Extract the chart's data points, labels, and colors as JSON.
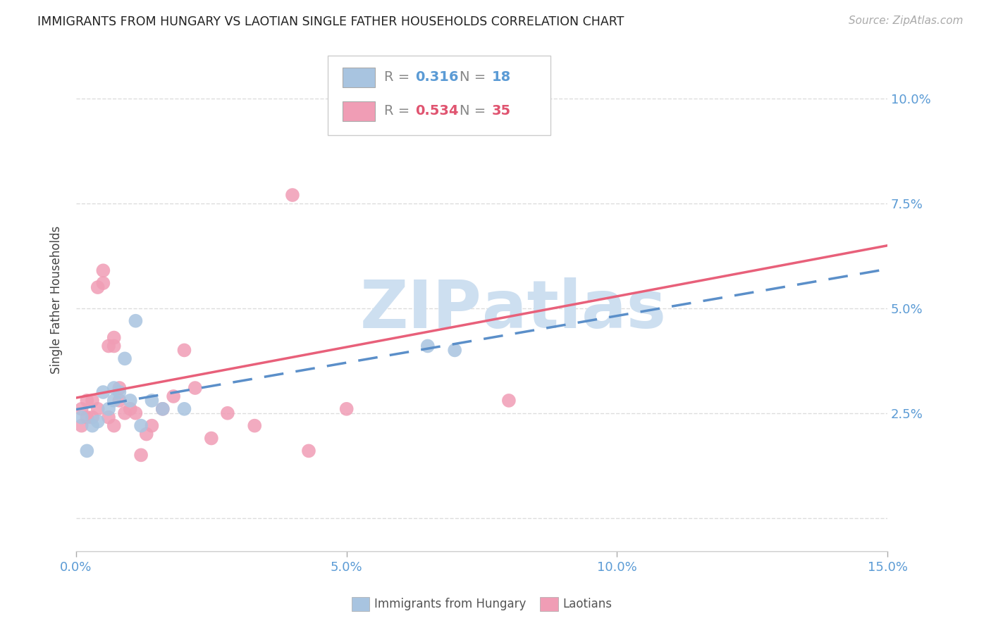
{
  "title": "IMMIGRANTS FROM HUNGARY VS LAOTIAN SINGLE FATHER HOUSEHOLDS CORRELATION CHART",
  "source": "Source: ZipAtlas.com",
  "ylabel": "Single Father Households",
  "xlim": [
    0.0,
    0.15
  ],
  "ylim": [
    -0.008,
    0.112
  ],
  "yticks": [
    0.0,
    0.025,
    0.05,
    0.075,
    0.1
  ],
  "xticks": [
    0.0,
    0.05,
    0.1,
    0.15
  ],
  "xtick_labels": [
    "0.0%",
    "5.0%",
    "10.0%",
    "15.0%"
  ],
  "ytick_labels_right": [
    "",
    "2.5%",
    "5.0%",
    "7.5%",
    "10.0%"
  ],
  "hungary_R": 0.316,
  "hungary_N": 18,
  "laotian_R": 0.534,
  "laotian_N": 35,
  "hungary_color": "#a8c4e0",
  "laotian_color": "#f09db5",
  "hungary_line_color": "#5b8fc9",
  "laotian_line_color": "#e8607a",
  "hungary_x": [
    0.001,
    0.002,
    0.003,
    0.004,
    0.005,
    0.006,
    0.007,
    0.007,
    0.008,
    0.009,
    0.01,
    0.011,
    0.012,
    0.014,
    0.016,
    0.02,
    0.065,
    0.07
  ],
  "hungary_y": [
    0.024,
    0.016,
    0.022,
    0.023,
    0.03,
    0.026,
    0.028,
    0.031,
    0.03,
    0.038,
    0.028,
    0.047,
    0.022,
    0.028,
    0.026,
    0.026,
    0.041,
    0.04
  ],
  "laotian_x": [
    0.001,
    0.001,
    0.002,
    0.002,
    0.003,
    0.003,
    0.004,
    0.004,
    0.005,
    0.005,
    0.006,
    0.006,
    0.007,
    0.007,
    0.007,
    0.008,
    0.008,
    0.009,
    0.01,
    0.011,
    0.012,
    0.013,
    0.014,
    0.016,
    0.018,
    0.02,
    0.022,
    0.025,
    0.028,
    0.033,
    0.04,
    0.043,
    0.05,
    0.065,
    0.08
  ],
  "laotian_y": [
    0.022,
    0.026,
    0.024,
    0.028,
    0.024,
    0.028,
    0.026,
    0.055,
    0.059,
    0.056,
    0.024,
    0.041,
    0.022,
    0.041,
    0.043,
    0.028,
    0.031,
    0.025,
    0.026,
    0.025,
    0.015,
    0.02,
    0.022,
    0.026,
    0.029,
    0.04,
    0.031,
    0.019,
    0.025,
    0.022,
    0.077,
    0.016,
    0.026,
    0.095,
    0.028
  ],
  "watermark_top": "ZIP",
  "watermark_bottom": "atlas",
  "watermark_color": "#cddff0",
  "background_color": "#ffffff",
  "grid_color": "#dddddd"
}
